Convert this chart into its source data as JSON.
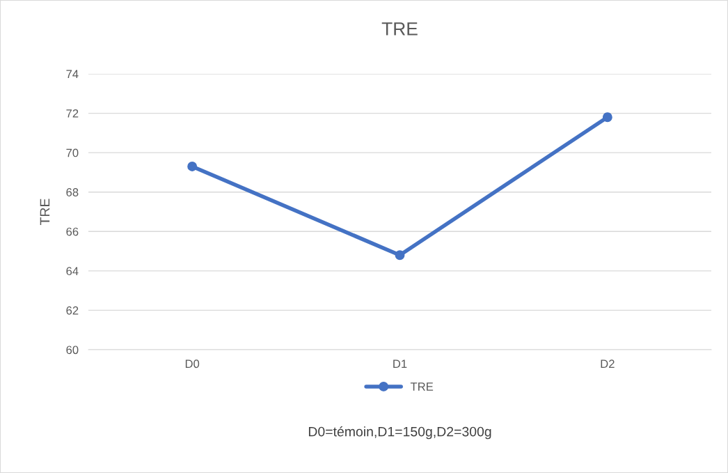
{
  "chart_data": {
    "type": "line",
    "title": "TRE",
    "ylabel": "TRE",
    "xlabel": "D0=témoin,D1=150g,D2=300g",
    "categories": [
      "D0",
      "D1",
      "D2"
    ],
    "series": [
      {
        "name": "TRE",
        "color": "#4472c4",
        "values": [
          69.3,
          64.8,
          71.8
        ]
      }
    ],
    "ylim": [
      60,
      74
    ],
    "yticks": [
      60,
      62,
      64,
      66,
      68,
      70,
      72,
      74
    ],
    "grid": "y",
    "legend": "bottom",
    "marker": "circle",
    "line_style": "solid"
  }
}
